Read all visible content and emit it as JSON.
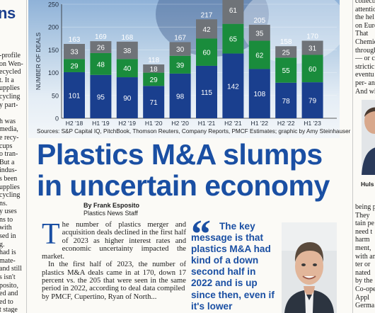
{
  "left_column": {
    "headline_fragment": "ns",
    "lines": [
      "-profile",
      "on Wen-",
      "ecycled",
      "t. It a",
      "upplies",
      "cycling",
      "y part-",
      "",
      "h was",
      "media,",
      "e recy-",
      "cups",
      "o tran-",
      "But a",
      " indus-",
      "s been",
      "upplies",
      "cycling",
      "ns.",
      "y uses",
      "ns to",
      "with",
      "sed in",
      "g.",
      "had is",
      " mate-",
      "and still",
      "s isn't",
      "posito,",
      "ed and",
      "ed to",
      "t stage",
      "won't"
    ]
  },
  "right_column": {
    "lines_top": [
      "collecti",
      "attentio",
      "the hel",
      "on Euro",
      "That",
      "Chemie",
      "through",
      "— or c",
      "strictic",
      "eventu",
      "per- an",
      "And wh"
    ],
    "photo_caption": "Huls",
    "lines_bottom": [
      "being p",
      "They",
      "tain pe",
      "need t",
      "harm",
      "ment,",
      "with an",
      "ter or",
      "nated",
      "by the",
      "Co-ope",
      "Appl",
      "Germa"
    ]
  },
  "chart_data": {
    "type": "bar",
    "stacked": true,
    "ylabel": "NUMBER OF DEALS",
    "ylim": [
      0,
      250
    ],
    "yticks": [
      0,
      50,
      100,
      150,
      200,
      250
    ],
    "categories": [
      "H2 '18",
      "H1 '19",
      "H2 '19",
      "H1 '20",
      "H2 '20",
      "H1 '21",
      "H2 '21",
      "H1 '22",
      "H2 '22",
      "H1 '23"
    ],
    "series": [
      {
        "color": "#1a3f8e",
        "values": [
          101,
          95,
          90,
          71,
          98,
          115,
          142,
          108,
          78,
          79
        ]
      },
      {
        "color": "#1a8c3c",
        "values": [
          29,
          48,
          40,
          29,
          39,
          60,
          65,
          62,
          55,
          60
        ]
      },
      {
        "color": "#6f7378",
        "values": [
          33,
          26,
          38,
          18,
          30,
          42,
          61,
          35,
          25,
          31
        ]
      }
    ],
    "totals": [
      163,
      169,
      168,
      118,
      167,
      217,
      268,
      205,
      158,
      170
    ],
    "totals_visible": [
      true,
      true,
      true,
      true,
      true,
      true,
      false,
      true,
      true,
      true
    ]
  },
  "source_line": "Sources: S&P Capital IQ, PitchBook, Thomson Reuters, Company Reports, PMCF Estimates; graphic by Amy Steinhauser",
  "headline": {
    "line1": "Plastics M&A slumps",
    "line2": "in uncertain economy"
  },
  "byline": {
    "name": "By Frank Esposito",
    "role": "Plastics News Staff"
  },
  "body": {
    "dropcap": "T",
    "para1": "he number of plastics merger and acquisition deals declined in the first half of 2023 as higher interest rates and economic uncertainty impacted the market.",
    "para2": "In the first half of 2023, the number of plastics M&A deals came in at 170, down 17 percent vs. the 205 that were seen in the same period in 2022, according to deal data compiled",
    "para3": "by PMCF, Cupertino, Ryan of North..."
  },
  "pull_quote": {
    "mark": "“",
    "text": "The key message is that plastics M&A had kind of a down second half in 2022 and is up since then, even if it's lower"
  },
  "colors": {
    "brand_blue": "#1a4fa3",
    "bar_blue": "#1a3f8e",
    "bar_green": "#1a8c3c",
    "bar_gray": "#6f7378"
  }
}
